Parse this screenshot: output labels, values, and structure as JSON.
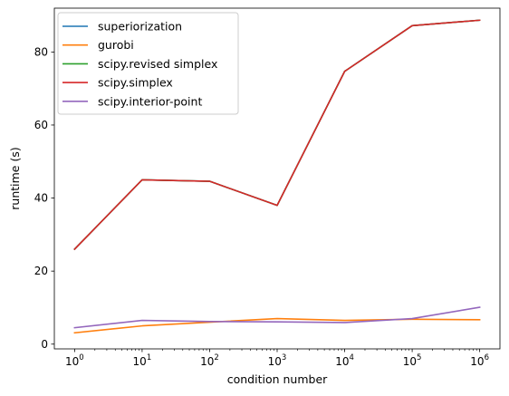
{
  "chart_data": {
    "type": "line",
    "title": "",
    "xlabel": "condition number",
    "ylabel": "runtime (s)",
    "xscale": "log",
    "x": [
      1,
      10,
      100,
      1000,
      10000,
      100000,
      1000000
    ],
    "xticks": [
      {
        "value": 1,
        "base": "10",
        "exp": "0"
      },
      {
        "value": 10,
        "base": "10",
        "exp": "1"
      },
      {
        "value": 100,
        "base": "10",
        "exp": "2"
      },
      {
        "value": 1000,
        "base": "10",
        "exp": "3"
      },
      {
        "value": 10000,
        "base": "10",
        "exp": "4"
      },
      {
        "value": 100000,
        "base": "10",
        "exp": "5"
      },
      {
        "value": 1000000,
        "base": "10",
        "exp": "6"
      }
    ],
    "yticks": [
      0,
      20,
      40,
      60,
      80
    ],
    "ylim": [
      -1.3,
      92
    ],
    "grid": false,
    "legend_position": "upper-left",
    "series": [
      {
        "name": "superiorization",
        "color": "#1f77b4",
        "values": [
          26.0,
          45.0,
          44.6,
          38.0,
          74.7,
          87.2,
          88.7
        ]
      },
      {
        "name": "gurobi",
        "color": "#ff7f0e",
        "values": [
          3.1,
          5.0,
          6.0,
          7.0,
          6.5,
          6.8,
          6.7
        ]
      },
      {
        "name": "scipy.revised simplex",
        "color": "#2ca02c",
        "values": [
          26.0,
          45.0,
          44.6,
          38.0,
          74.7,
          87.2,
          88.7
        ]
      },
      {
        "name": "scipy.simplex",
        "color": "#d62728",
        "values": [
          26.0,
          45.0,
          44.6,
          38.0,
          74.7,
          87.2,
          88.7
        ]
      },
      {
        "name": "scipy.interior-point",
        "color": "#9467bd",
        "values": [
          4.5,
          6.5,
          6.2,
          6.1,
          5.9,
          7.0,
          10.1
        ]
      }
    ]
  }
}
